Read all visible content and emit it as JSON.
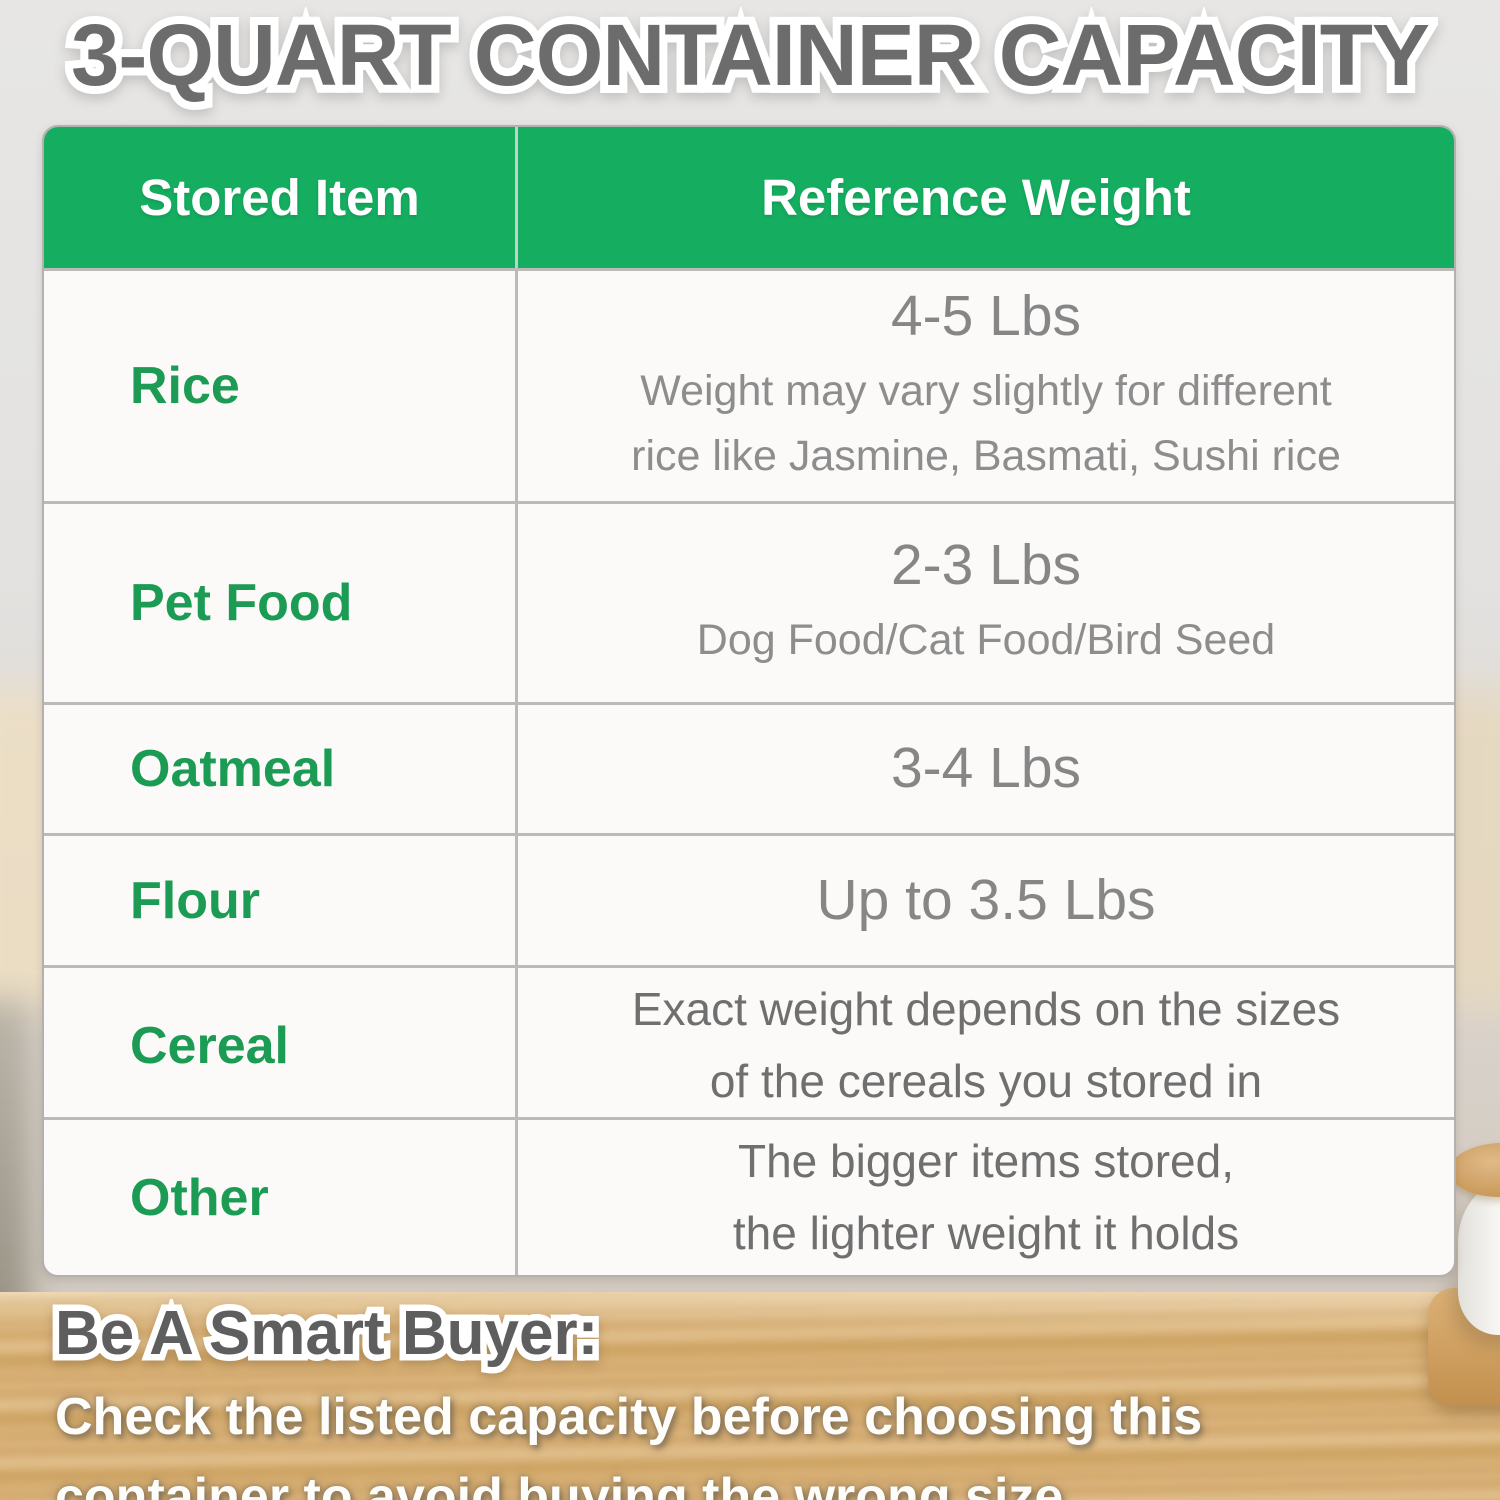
{
  "title": "3-QUART CONTAINER CAPACITY",
  "table": {
    "headers": [
      "Stored Item",
      "Reference Weight"
    ],
    "rows": [
      {
        "item": "Rice",
        "weight": "4-5 Lbs",
        "notes": [
          "Weight may vary slightly for different",
          "rice like Jasmine, Basmati, Sushi rice"
        ]
      },
      {
        "item": "Pet Food",
        "weight": "2-3 Lbs",
        "notes": [
          "Dog Food/Cat Food/Bird Seed"
        ]
      },
      {
        "item": "Oatmeal",
        "weight": "3-4 Lbs",
        "notes": []
      },
      {
        "item": "Flour",
        "weight": "Up to 3.5 Lbs",
        "notes": []
      },
      {
        "item": "Cereal",
        "weight": "",
        "notes": [
          "Exact weight depends on the sizes",
          "of the cereals you stored in"
        ]
      },
      {
        "item": "Other",
        "weight": "",
        "notes": [
          "The bigger items stored,",
          "the lighter weight it holds"
        ]
      }
    ]
  },
  "footer": {
    "heading": "Be A Smart Buyer:",
    "lines": [
      "Check the listed capacity before choosing this",
      "container to avoid buying the wrong size."
    ]
  },
  "colors": {
    "header_green": "#15ae61",
    "item_green": "#1b9b53",
    "weight_gray": "#868686",
    "note_gray": "#8d8d8d",
    "dark_note_gray": "#6f6f6f",
    "title_gray": "#6c6c6c",
    "wood_tan": "#d2a96e"
  },
  "chart_data": {
    "type": "table",
    "title": "3-QUART CONTAINER CAPACITY",
    "columns": [
      "Stored Item",
      "Reference Weight"
    ],
    "rows": [
      [
        "Rice",
        "4-5 Lbs; Weight may vary slightly for different rice like Jasmine, Basmati, Sushi rice"
      ],
      [
        "Pet Food",
        "2-3 Lbs; Dog Food/Cat Food/Bird Seed"
      ],
      [
        "Oatmeal",
        "3-4 Lbs"
      ],
      [
        "Flour",
        "Up to 3.5 Lbs"
      ],
      [
        "Cereal",
        "Exact weight depends on the sizes of the cereals you stored in"
      ],
      [
        "Other",
        "The bigger items stored, the lighter weight it holds"
      ]
    ]
  }
}
